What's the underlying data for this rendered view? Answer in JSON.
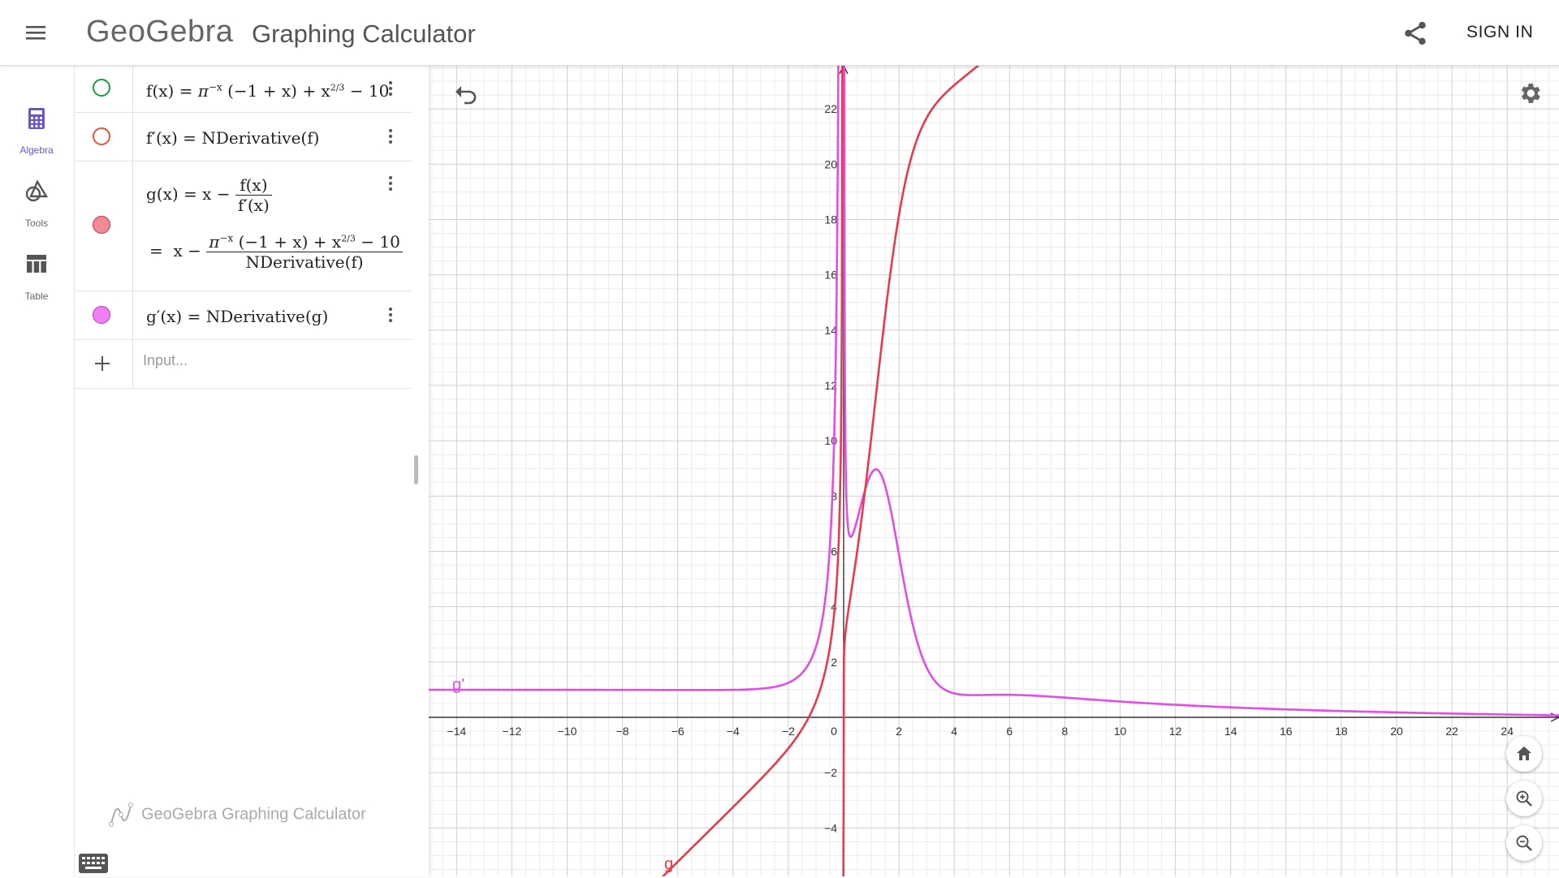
{
  "header": {
    "logo": "GeoGebra",
    "title": "Graphing Calculator",
    "sign_in": "SIGN IN"
  },
  "rail": [
    {
      "label": "Algebra",
      "icon": "calculator-icon",
      "active": true
    },
    {
      "label": "Tools",
      "icon": "shapes-icon",
      "active": false
    },
    {
      "label": "Table",
      "icon": "table-icon",
      "active": false
    }
  ],
  "algebra": {
    "rows": [
      {
        "lhs": "f(x)",
        "rhs_base": "π",
        "rhs_exp": "−x",
        "rhs_mid": " (−1 + x) + x",
        "rhs_exp2": "2/3",
        "rhs_end": " − 10",
        "color": "#1b9e3e",
        "filled": false
      },
      {
        "lhs": "f′(x)",
        "rhs": "NDerivative(f)",
        "color": "#e0583a",
        "filled": false
      },
      {
        "lhs": "g(x)",
        "rhs_x": "x −",
        "num": "f(x)",
        "den": "f′(x)",
        "eq_sign": "=",
        "expanded_x": "x −",
        "expanded_num_base": "π",
        "expanded_num_exp": "−x",
        "expanded_num_rest": " (−1 + x) + x",
        "expanded_num_exp2": "2/3",
        "expanded_num_end": " − 10",
        "expanded_den": "NDerivative(f)",
        "color": "#e8394d",
        "filled": true
      },
      {
        "lhs": "g′(x)",
        "rhs": "NDerivative(g)",
        "color": "#e14de6",
        "filled": true
      }
    ],
    "input_placeholder": "Input...",
    "watermark": "GeoGebra Graphing Calculator"
  },
  "graph": {
    "x_ticks": [
      "−14",
      "−12",
      "−10",
      "−8",
      "−6",
      "−4",
      "−2",
      "0",
      "2",
      "4",
      "6",
      "8",
      "10",
      "12",
      "14",
      "16",
      "18",
      "20",
      "22",
      "24"
    ],
    "y_ticks_pos": [
      "2",
      "4",
      "6",
      "8",
      "10",
      "12",
      "14",
      "16",
      "18",
      "20",
      "22"
    ],
    "y_ticks_neg": [
      "−2",
      "−4"
    ],
    "label_g": "g",
    "label_gprime": "g'",
    "colors": {
      "g": "#e8394d",
      "gprime": "#e14de6",
      "grid_major": "#cfcfcf",
      "grid_minor": "#ececec",
      "axis": "#333333"
    }
  },
  "icons": {
    "menu": "hamburger-menu-icon",
    "share": "share-icon",
    "undo": "undo-icon",
    "settings": "gear-icon",
    "home": "home-icon",
    "zoom_in": "zoom-in-icon",
    "zoom_out": "zoom-out-icon",
    "keyboard": "keyboard-icon",
    "more": "more-vertical-icon",
    "add": "plus-icon"
  }
}
